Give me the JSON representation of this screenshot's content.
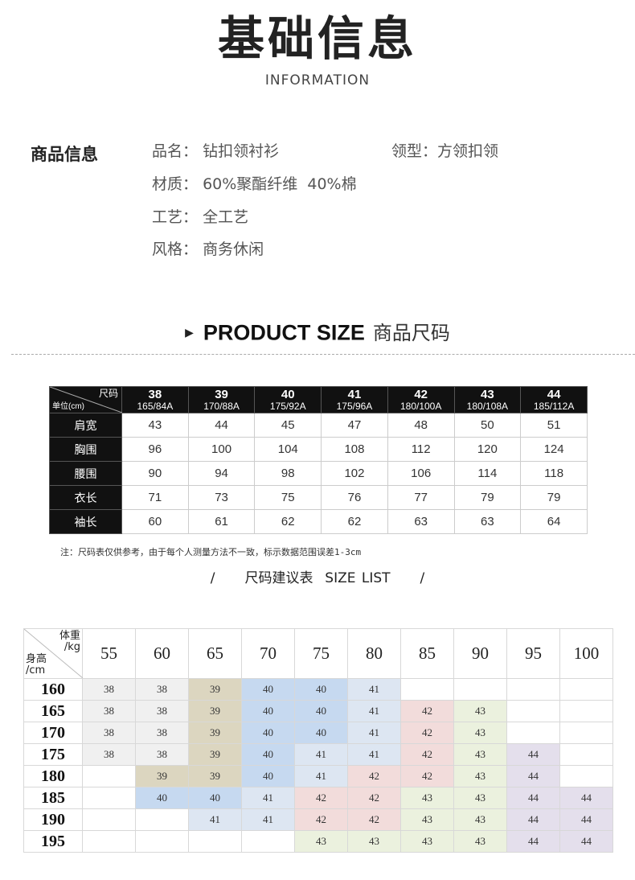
{
  "header": {
    "title": "基础信息",
    "subtitle": "INFORMATION"
  },
  "info": {
    "label": "商品信息",
    "fields": [
      {
        "k": "品名：",
        "v": "钻扣领衬衫"
      },
      {
        "k": "领型：",
        "v": "方领扣领"
      },
      {
        "k": "材质：",
        "v": "60%聚酯纤维  40%棉"
      },
      {
        "k": "工艺：",
        "v": "全工艺"
      },
      {
        "k": "风格：",
        "v": "商务休闲"
      }
    ]
  },
  "product_size": {
    "en": "PRODUCT SIZE",
    "cn": "商品尺码"
  },
  "size_table": {
    "corner_size": "尺码",
    "corner_unit": "单位(cm)",
    "sizes": [
      {
        "s": "38",
        "f": "165/84A"
      },
      {
        "s": "39",
        "f": "170/88A"
      },
      {
        "s": "40",
        "f": "175/92A"
      },
      {
        "s": "41",
        "f": "175/96A"
      },
      {
        "s": "42",
        "f": "180/100A"
      },
      {
        "s": "43",
        "f": "180/108A"
      },
      {
        "s": "44",
        "f": "185/112A"
      }
    ],
    "rows": [
      {
        "label": "肩宽",
        "values": [
          "43",
          "44",
          "45",
          "47",
          "48",
          "50",
          "51"
        ]
      },
      {
        "label": "胸围",
        "values": [
          "96",
          "100",
          "104",
          "108",
          "112",
          "120",
          "124"
        ]
      },
      {
        "label": "腰围",
        "values": [
          "90",
          "94",
          "98",
          "102",
          "106",
          "114",
          "118"
        ]
      },
      {
        "label": "衣长",
        "values": [
          "71",
          "73",
          "75",
          "76",
          "77",
          "79",
          "79"
        ]
      },
      {
        "label": "袖长",
        "values": [
          "60",
          "61",
          "62",
          "62",
          "63",
          "63",
          "64"
        ]
      }
    ]
  },
  "note": "注：尺码表仅供参考，由于每个人测量方法不一致，标示数据范围误差1-3cm",
  "size_list_title": "/     尺码建议表  SIZE LIST     /",
  "recommend": {
    "corner_weight": "体重\n/kg",
    "corner_height": "身高\n/cm",
    "weights": [
      "55",
      "60",
      "65",
      "70",
      "75",
      "80",
      "85",
      "90",
      "95",
      "100"
    ],
    "size_colors": {
      "38": "#f0f0f0",
      "39": "#dcd6c0",
      "40": "#c6d9f0",
      "41": "#dde6f2",
      "42": "#f2dcdb",
      "43": "#ebf1de",
      "44": "#e4dfec"
    },
    "rows": [
      {
        "h": "160",
        "v": [
          "38",
          "38",
          "39",
          "40",
          "40",
          "41",
          "",
          "",
          "",
          ""
        ]
      },
      {
        "h": "165",
        "v": [
          "38",
          "38",
          "39",
          "40",
          "40",
          "41",
          "42",
          "43",
          "",
          ""
        ]
      },
      {
        "h": "170",
        "v": [
          "38",
          "38",
          "39",
          "40",
          "40",
          "41",
          "42",
          "43",
          "",
          ""
        ]
      },
      {
        "h": "175",
        "v": [
          "38",
          "38",
          "39",
          "40",
          "41",
          "41",
          "42",
          "43",
          "44",
          ""
        ]
      },
      {
        "h": "180",
        "v": [
          "",
          "39",
          "39",
          "40",
          "41",
          "42",
          "42",
          "43",
          "44",
          ""
        ]
      },
      {
        "h": "185",
        "v": [
          "",
          "40",
          "40",
          "41",
          "42",
          "42",
          "43",
          "43",
          "44",
          "44"
        ]
      },
      {
        "h": "190",
        "v": [
          "",
          "",
          "41",
          "41",
          "42",
          "42",
          "43",
          "43",
          "44",
          "44"
        ]
      },
      {
        "h": "195",
        "v": [
          "",
          "",
          "",
          "",
          "43",
          "43",
          "43",
          "43",
          "44",
          "44"
        ]
      }
    ]
  }
}
